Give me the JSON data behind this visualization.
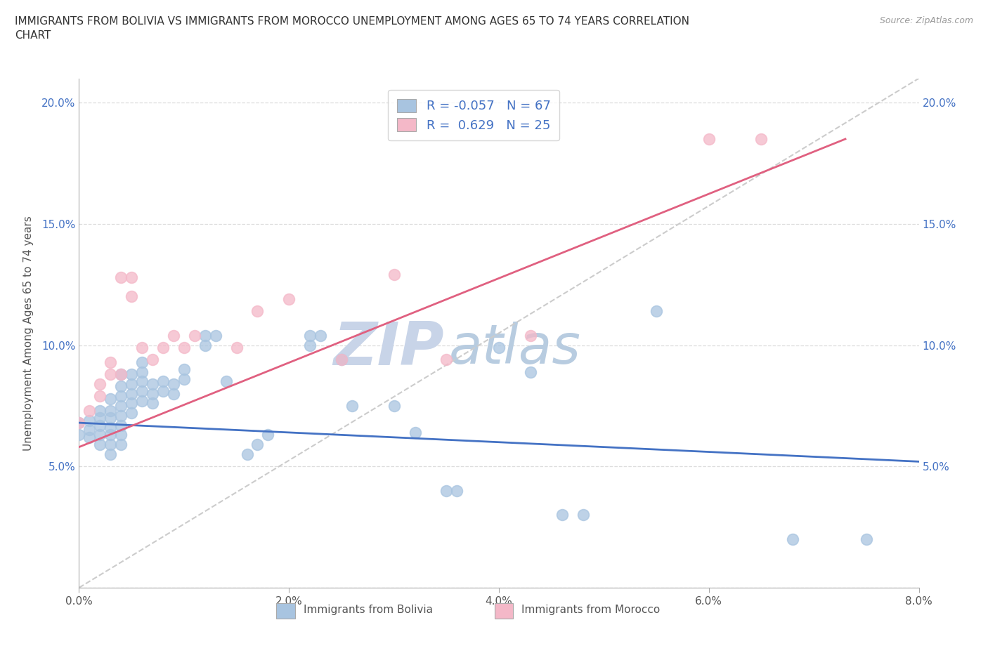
{
  "title": "IMMIGRANTS FROM BOLIVIA VS IMMIGRANTS FROM MOROCCO UNEMPLOYMENT AMONG AGES 65 TO 74 YEARS CORRELATION\nCHART",
  "source_text": "Source: ZipAtlas.com",
  "ylabel": "Unemployment Among Ages 65 to 74 years",
  "xlim": [
    0.0,
    0.08
  ],
  "ylim": [
    0.0,
    0.21
  ],
  "xticks": [
    0.0,
    0.02,
    0.04,
    0.06,
    0.08
  ],
  "xticklabels": [
    "0.0%",
    "2.0%",
    "4.0%",
    "6.0%",
    "8.0%"
  ],
  "yticks": [
    0.0,
    0.05,
    0.1,
    0.15,
    0.2
  ],
  "yticklabels": [
    "",
    "5.0%",
    "10.0%",
    "15.0%",
    "20.0%"
  ],
  "bolivia_color": "#a8c4e0",
  "morocco_color": "#f4b8c8",
  "bolivia_line_color": "#4472c4",
  "morocco_line_color": "#e06080",
  "diagonal_color": "#cccccc",
  "watermark_color_zip": "#c8d4e8",
  "watermark_color_atlas": "#b8cce0",
  "legend_bolivia_label": "Immigrants from Bolivia",
  "legend_morocco_label": "Immigrants from Morocco",
  "bolivia_R": "-0.057",
  "bolivia_N": "67",
  "morocco_R": "0.629",
  "morocco_N": "25",
  "bolivia_line": [
    [
      0.0,
      0.068
    ],
    [
      0.08,
      0.052
    ]
  ],
  "morocco_line": [
    [
      0.0,
      0.058
    ],
    [
      0.073,
      0.185
    ]
  ],
  "diagonal_line": [
    [
      0.0,
      0.0
    ],
    [
      0.08,
      0.21
    ]
  ],
  "bolivia_scatter": [
    [
      0.0,
      0.068
    ],
    [
      0.0,
      0.063
    ],
    [
      0.001,
      0.069
    ],
    [
      0.001,
      0.065
    ],
    [
      0.001,
      0.062
    ],
    [
      0.002,
      0.073
    ],
    [
      0.002,
      0.07
    ],
    [
      0.002,
      0.067
    ],
    [
      0.002,
      0.063
    ],
    [
      0.002,
      0.059
    ],
    [
      0.003,
      0.078
    ],
    [
      0.003,
      0.073
    ],
    [
      0.003,
      0.07
    ],
    [
      0.003,
      0.066
    ],
    [
      0.003,
      0.063
    ],
    [
      0.003,
      0.059
    ],
    [
      0.003,
      0.055
    ],
    [
      0.004,
      0.088
    ],
    [
      0.004,
      0.083
    ],
    [
      0.004,
      0.079
    ],
    [
      0.004,
      0.075
    ],
    [
      0.004,
      0.071
    ],
    [
      0.004,
      0.067
    ],
    [
      0.004,
      0.063
    ],
    [
      0.004,
      0.059
    ],
    [
      0.005,
      0.088
    ],
    [
      0.005,
      0.084
    ],
    [
      0.005,
      0.08
    ],
    [
      0.005,
      0.076
    ],
    [
      0.005,
      0.072
    ],
    [
      0.006,
      0.093
    ],
    [
      0.006,
      0.089
    ],
    [
      0.006,
      0.085
    ],
    [
      0.006,
      0.081
    ],
    [
      0.006,
      0.077
    ],
    [
      0.007,
      0.084
    ],
    [
      0.007,
      0.08
    ],
    [
      0.007,
      0.076
    ],
    [
      0.008,
      0.085
    ],
    [
      0.008,
      0.081
    ],
    [
      0.009,
      0.084
    ],
    [
      0.009,
      0.08
    ],
    [
      0.01,
      0.09
    ],
    [
      0.01,
      0.086
    ],
    [
      0.012,
      0.104
    ],
    [
      0.012,
      0.1
    ],
    [
      0.013,
      0.104
    ],
    [
      0.014,
      0.085
    ],
    [
      0.016,
      0.055
    ],
    [
      0.017,
      0.059
    ],
    [
      0.018,
      0.063
    ],
    [
      0.022,
      0.104
    ],
    [
      0.022,
      0.1
    ],
    [
      0.023,
      0.104
    ],
    [
      0.025,
      0.094
    ],
    [
      0.026,
      0.075
    ],
    [
      0.03,
      0.075
    ],
    [
      0.032,
      0.064
    ],
    [
      0.035,
      0.04
    ],
    [
      0.036,
      0.04
    ],
    [
      0.04,
      0.099
    ],
    [
      0.043,
      0.089
    ],
    [
      0.046,
      0.03
    ],
    [
      0.048,
      0.03
    ],
    [
      0.055,
      0.114
    ],
    [
      0.068,
      0.02
    ],
    [
      0.075,
      0.02
    ]
  ],
  "morocco_scatter": [
    [
      0.0,
      0.068
    ],
    [
      0.001,
      0.073
    ],
    [
      0.002,
      0.079
    ],
    [
      0.002,
      0.084
    ],
    [
      0.003,
      0.088
    ],
    [
      0.003,
      0.093
    ],
    [
      0.004,
      0.088
    ],
    [
      0.004,
      0.128
    ],
    [
      0.005,
      0.12
    ],
    [
      0.005,
      0.128
    ],
    [
      0.006,
      0.099
    ],
    [
      0.007,
      0.094
    ],
    [
      0.008,
      0.099
    ],
    [
      0.009,
      0.104
    ],
    [
      0.01,
      0.099
    ],
    [
      0.011,
      0.104
    ],
    [
      0.015,
      0.099
    ],
    [
      0.017,
      0.114
    ],
    [
      0.02,
      0.119
    ],
    [
      0.025,
      0.094
    ],
    [
      0.03,
      0.129
    ],
    [
      0.035,
      0.094
    ],
    [
      0.043,
      0.104
    ],
    [
      0.06,
      0.185
    ],
    [
      0.065,
      0.185
    ]
  ]
}
